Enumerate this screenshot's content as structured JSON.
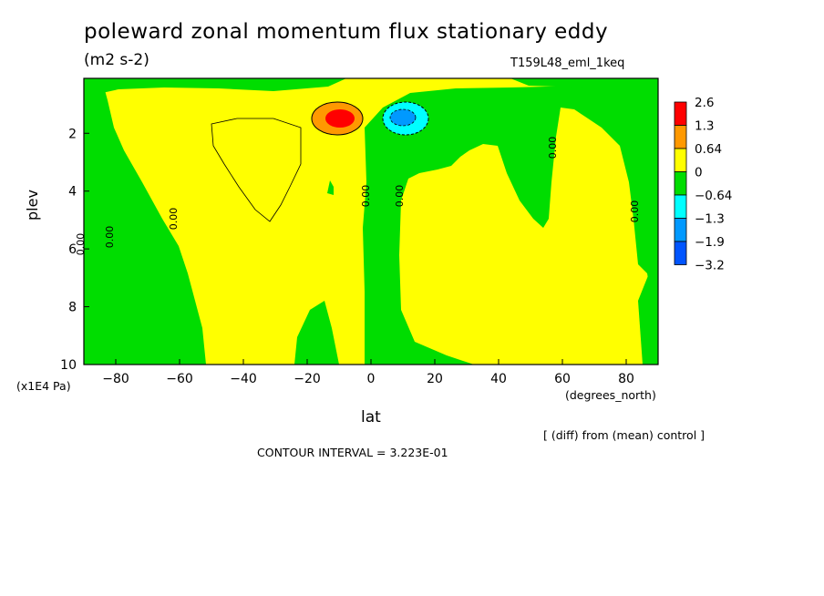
{
  "chart_data": {
    "type": "heatmap",
    "title": "poleward zonal momentum flux stationary eddy",
    "units": "(m2 s-2)",
    "run_label": "T159L48_eml_1keq",
    "xlabel": "lat",
    "x_unit": "(degrees_north)",
    "ylabel": "plev",
    "y_unit": "(x1E4 Pa)",
    "xlim": [
      -90,
      90
    ],
    "ylim": [
      10,
      0.1
    ],
    "xticks": [
      -80,
      -60,
      -40,
      -20,
      0,
      20,
      40,
      60,
      80
    ],
    "yticks": [
      2,
      4,
      6,
      8,
      10
    ],
    "note": "[ (diff) from (mean) control ]",
    "contour_interval": "CONTOUR INTERVAL = 3.223E-01",
    "colorbar": {
      "labels": [
        "2.6",
        "1.3",
        "0.64",
        "0",
        "−0.64",
        "−1.3",
        "−1.9",
        "−3.2"
      ],
      "colors": [
        "#ff0000",
        "#ff9900",
        "#ffff00",
        "#00dd00",
        "#00ffff",
        "#0099ff",
        "#0055ff"
      ]
    },
    "contour_labels": [
      "0.00",
      "0.00",
      "0.00",
      "0.00",
      "0.00",
      "0.00",
      "0.00"
    ],
    "features": [
      {
        "kind": "max",
        "lat": -10,
        "plev": 1.5,
        "value_range": "> 1.3"
      },
      {
        "kind": "min",
        "lat": 8,
        "plev": 1.5,
        "value_range": "-1.3 to -1.9"
      }
    ],
    "colors": {
      "positive_low": "#ffff00",
      "negative_low": "#00dd00"
    }
  }
}
